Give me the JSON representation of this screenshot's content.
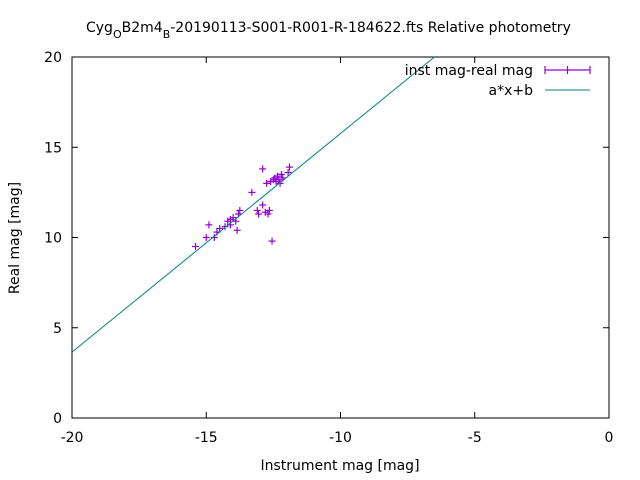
{
  "chart_data": {
    "type": "scatter",
    "title_parts": {
      "base": "Cyg",
      "sub1": "O",
      "mid": "B2m4",
      "sub2": "B",
      "rest": "-20190113-S001-R001-R-184622.fts Relative photometry"
    },
    "xlabel": "Instrument mag [mag]",
    "ylabel": "Real mag [mag]",
    "xlim": [
      -20,
      0
    ],
    "ylim": [
      0,
      20
    ],
    "xticks": [
      -20,
      -15,
      -10,
      -5,
      0
    ],
    "yticks": [
      0,
      5,
      10,
      15,
      20
    ],
    "legend_position": "top-right",
    "series": [
      {
        "name": "inst mag-real mag",
        "kind": "points-with-errorbars",
        "color": "#9400d3",
        "points": [
          [
            -15.4,
            9.5
          ],
          [
            -15.0,
            10.0
          ],
          [
            -14.9,
            10.7
          ],
          [
            -14.7,
            10.0
          ],
          [
            -14.6,
            10.3
          ],
          [
            -14.5,
            10.5
          ],
          [
            -14.3,
            10.6
          ],
          [
            -14.2,
            10.9
          ],
          [
            -14.1,
            10.7
          ],
          [
            -14.1,
            11.0
          ],
          [
            -14.0,
            11.1
          ],
          [
            -13.9,
            10.9
          ],
          [
            -13.85,
            10.4
          ],
          [
            -13.8,
            11.3
          ],
          [
            -13.75,
            11.5
          ],
          [
            -13.3,
            12.5
          ],
          [
            -13.1,
            11.5
          ],
          [
            -13.05,
            11.3
          ],
          [
            -12.9,
            13.8
          ],
          [
            -12.9,
            11.8
          ],
          [
            -12.8,
            11.4
          ],
          [
            -12.75,
            13.0
          ],
          [
            -12.7,
            11.3
          ],
          [
            -12.65,
            11.5
          ],
          [
            -12.6,
            13.1
          ],
          [
            -12.55,
            9.8
          ],
          [
            -12.5,
            13.2
          ],
          [
            -12.45,
            13.3
          ],
          [
            -12.4,
            13.1
          ],
          [
            -12.35,
            13.4
          ],
          [
            -12.3,
            13.2
          ],
          [
            -12.25,
            13.0
          ],
          [
            -12.2,
            13.5
          ],
          [
            -12.15,
            13.3
          ],
          [
            -11.95,
            13.6
          ],
          [
            -11.9,
            13.9
          ]
        ]
      },
      {
        "name": "a*x+b",
        "kind": "line",
        "color": "#008080",
        "x": [
          -20,
          -6.5
        ],
        "y": [
          3.65,
          20
        ]
      }
    ]
  }
}
